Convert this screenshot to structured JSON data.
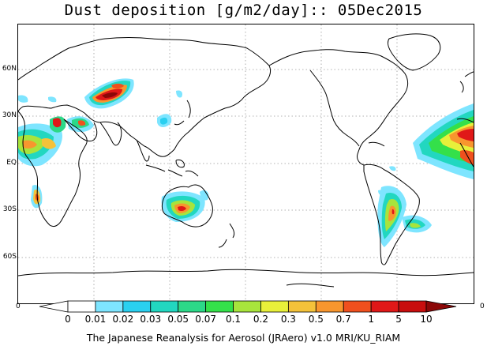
{
  "title": "Dust deposition [g/m2/day]:: 05Dec2015",
  "lat_labels": [
    "60N",
    "30N",
    "EQ",
    "30S",
    "60S"
  ],
  "corner_labels": {
    "left": "0",
    "right": "0"
  },
  "colorbar": {
    "labels": [
      "0",
      "0.01",
      "0.02",
      "0.03",
      "0.05",
      "0.07",
      "0.1",
      "0.2",
      "0.3",
      "0.5",
      "0.7",
      "1",
      "5",
      "10"
    ],
    "colors": [
      "#ffffff",
      "#ffffff",
      "#7ee5ff",
      "#2ad0f0",
      "#22d7c0",
      "#2cd888",
      "#34e04a",
      "#a8e43c",
      "#e8f03a",
      "#f4c23a",
      "#f8962e",
      "#f0501e",
      "#e01818",
      "#c80e0e",
      "#8c0808"
    ]
  },
  "footer": "The Japanese Reanalysis for Aerosol (JRAero) v1.0 MRI/KU_RIAM"
}
